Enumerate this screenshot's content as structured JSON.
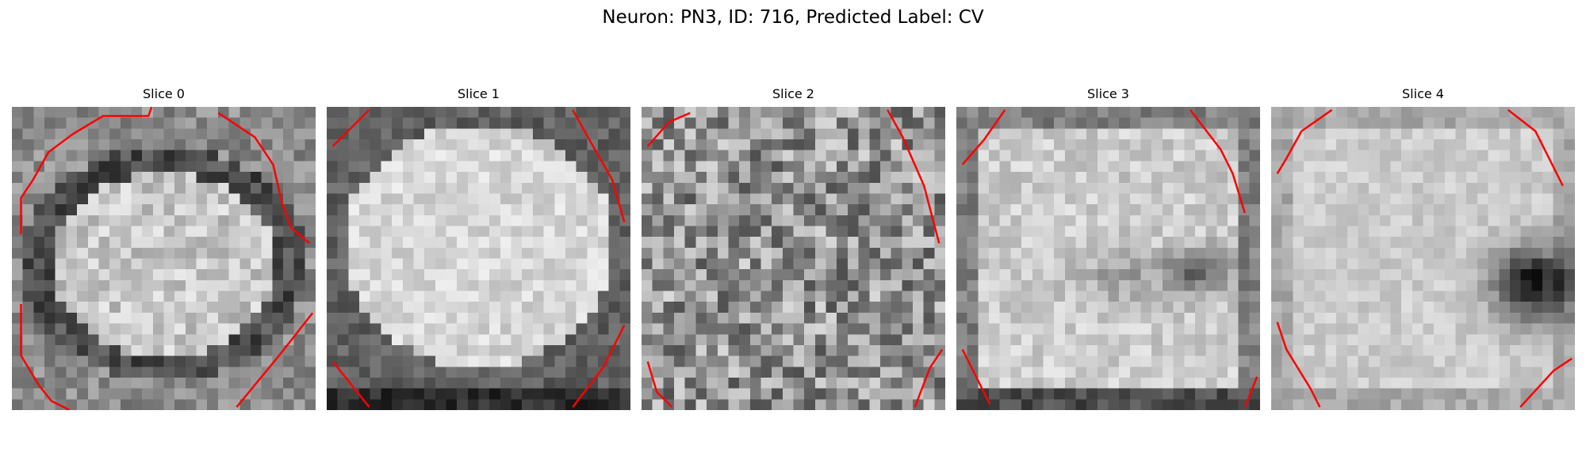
{
  "figure": {
    "title": "Neuron: PN3, ID: 716, Predicted Label: CV"
  },
  "slices": [
    {
      "title": "Slice 0",
      "pattern": "ring",
      "contour_segments": [
        [
          [
            0.03,
            0.42
          ],
          [
            0.03,
            0.3
          ],
          [
            0.07,
            0.24
          ],
          [
            0.12,
            0.15
          ],
          [
            0.2,
            0.09
          ],
          [
            0.3,
            0.03
          ],
          [
            0.45,
            0.03
          ],
          [
            0.46,
            0
          ]
        ],
        [
          [
            0.68,
            0.02
          ],
          [
            0.74,
            0.06
          ],
          [
            0.8,
            0.1
          ],
          [
            0.86,
            0.19
          ],
          [
            0.89,
            0.32
          ],
          [
            0.92,
            0.4
          ],
          [
            0.98,
            0.45
          ]
        ],
        [
          [
            0.03,
            0.65
          ],
          [
            0.03,
            0.82
          ],
          [
            0.09,
            0.92
          ],
          [
            0.13,
            0.97
          ],
          [
            0.19,
            1.0
          ]
        ],
        [
          [
            0.74,
            0.99
          ],
          [
            0.88,
            0.82
          ],
          [
            0.99,
            0.68
          ]
        ]
      ]
    },
    {
      "title": "Slice 1",
      "pattern": "blob",
      "contour_segments": [
        [
          [
            0.02,
            0.13
          ],
          [
            0.14,
            0.01
          ]
        ],
        [
          [
            0.81,
            0.01
          ],
          [
            0.86,
            0.1
          ],
          [
            0.94,
            0.24
          ],
          [
            0.98,
            0.38
          ]
        ],
        [
          [
            0.02,
            0.84
          ],
          [
            0.14,
            0.99
          ]
        ],
        [
          [
            0.81,
            0.99
          ],
          [
            0.91,
            0.86
          ],
          [
            0.98,
            0.72
          ]
        ]
      ]
    },
    {
      "title": "Slice 2",
      "pattern": "noise",
      "contour_segments": [
        [
          [
            0.02,
            0.13
          ],
          [
            0.09,
            0.05
          ],
          [
            0.16,
            0.02
          ]
        ],
        [
          [
            0.81,
            0.01
          ],
          [
            0.86,
            0.1
          ],
          [
            0.93,
            0.26
          ],
          [
            0.98,
            0.45
          ]
        ],
        [
          [
            0.02,
            0.84
          ],
          [
            0.05,
            0.94
          ],
          [
            0.1,
            0.99
          ]
        ],
        [
          [
            0.9,
            0.99
          ],
          [
            0.95,
            0.86
          ],
          [
            0.99,
            0.8
          ]
        ]
      ]
    },
    {
      "title": "Slice 3",
      "pattern": "spot-mid",
      "contour_segments": [
        [
          [
            0.02,
            0.19
          ],
          [
            0.09,
            0.11
          ],
          [
            0.16,
            0.01
          ]
        ],
        [
          [
            0.77,
            0.01
          ],
          [
            0.87,
            0.14
          ],
          [
            0.91,
            0.22
          ],
          [
            0.95,
            0.35
          ]
        ],
        [
          [
            0.02,
            0.8
          ],
          [
            0.06,
            0.88
          ],
          [
            0.11,
            0.98
          ]
        ],
        [
          [
            0.95,
            0.99
          ],
          [
            0.99,
            0.89
          ]
        ]
      ]
    },
    {
      "title": "Slice 4",
      "pattern": "spot-right",
      "contour_segments": [
        [
          [
            0.02,
            0.22
          ],
          [
            0.05,
            0.17
          ],
          [
            0.1,
            0.08
          ],
          [
            0.2,
            0.01
          ]
        ],
        [
          [
            0.78,
            0.01
          ],
          [
            0.87,
            0.08
          ],
          [
            0.92,
            0.18
          ],
          [
            0.96,
            0.26
          ]
        ],
        [
          [
            0.02,
            0.71
          ],
          [
            0.05,
            0.8
          ],
          [
            0.13,
            0.93
          ],
          [
            0.16,
            0.99
          ]
        ],
        [
          [
            0.82,
            0.99
          ],
          [
            0.93,
            0.87
          ],
          [
            0.99,
            0.83
          ]
        ]
      ]
    }
  ],
  "colors": {
    "contour": "#ff0000",
    "background": "#ffffff",
    "text": "#000000"
  }
}
